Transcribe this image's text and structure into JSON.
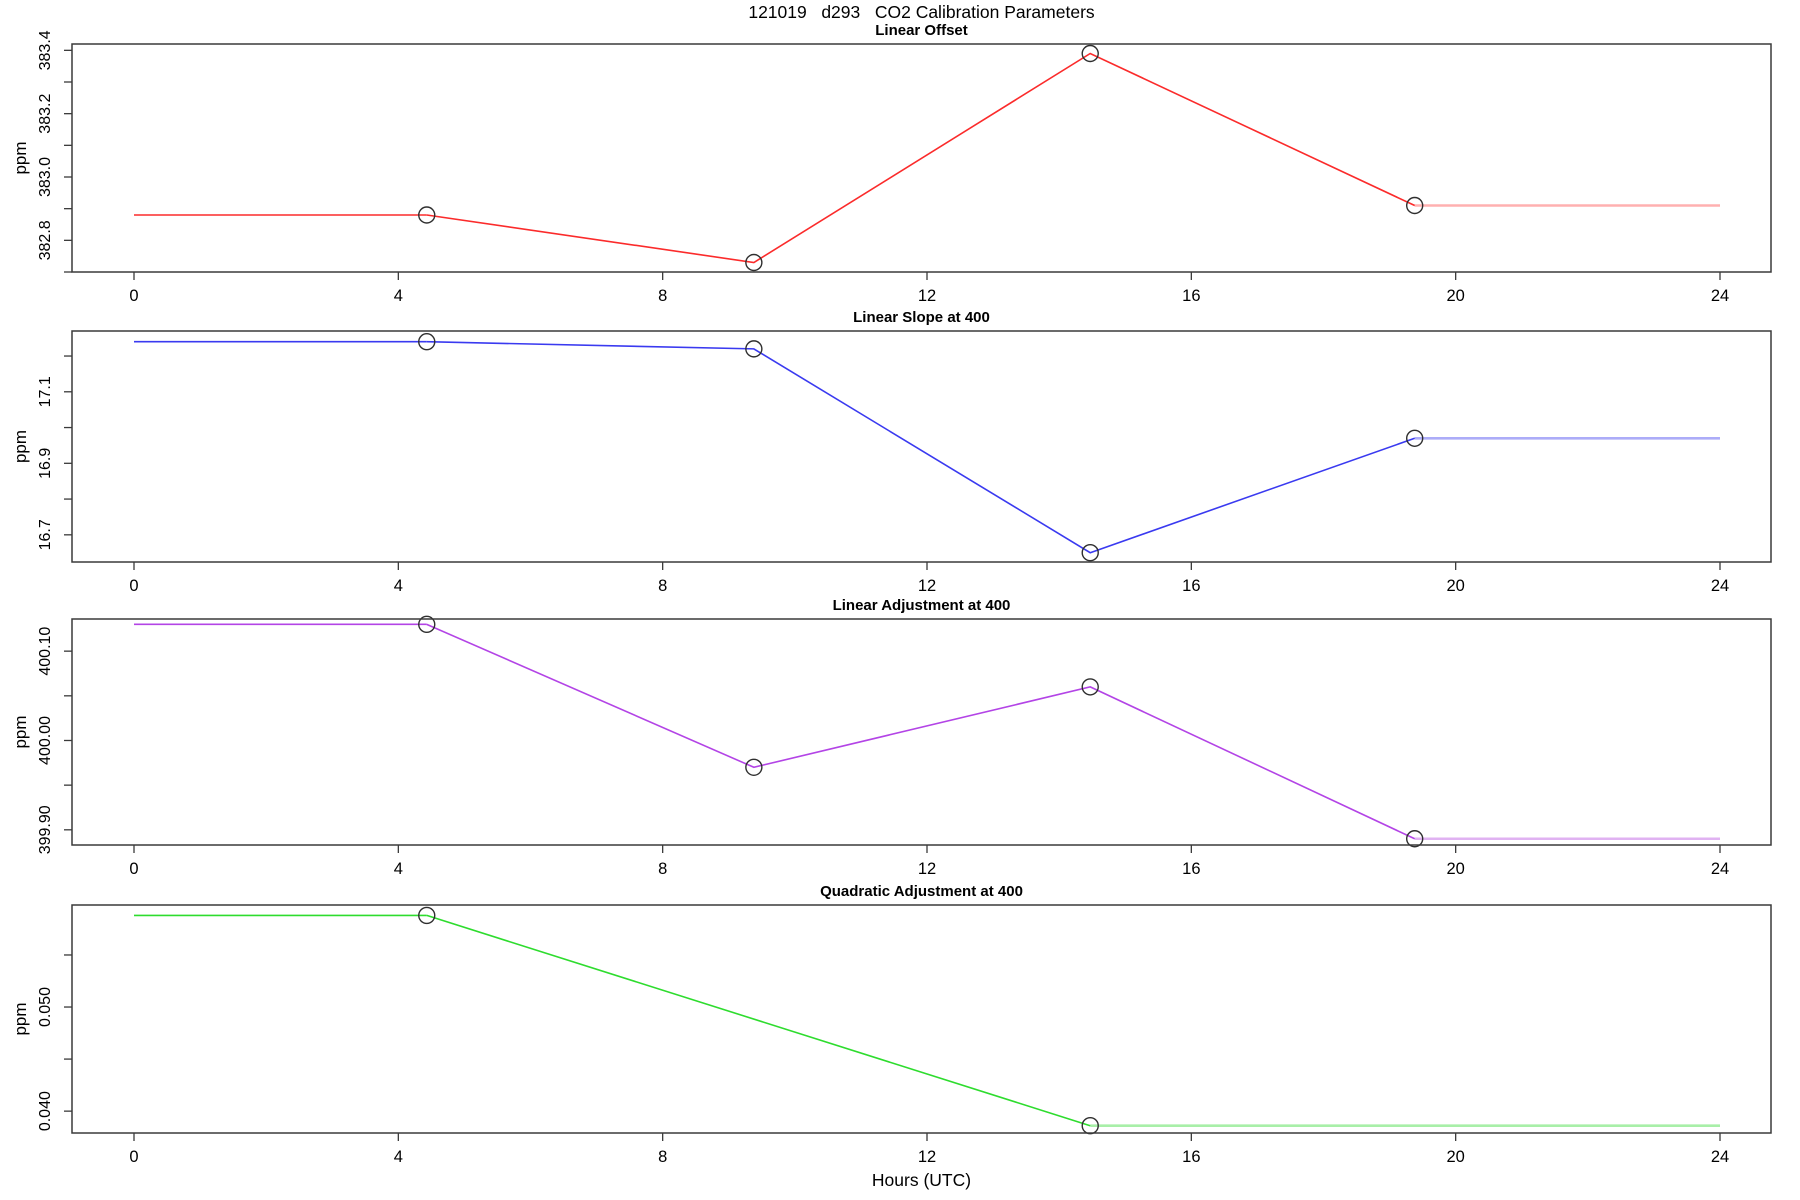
{
  "page": {
    "main_title": "121019   d293   CO2 Calibration Parameters"
  },
  "x_axis": {
    "label": "Hours (UTC)",
    "range": [
      0,
      24
    ],
    "ticks": [
      0,
      4,
      8,
      12,
      16,
      20,
      24
    ]
  },
  "style": {
    "axis_color": "#3a3a3a",
    "text_color": "#000000",
    "marker_color": "#2f2f2f",
    "marker": "open-circle"
  },
  "chart_data": [
    {
      "type": "line",
      "title": "Linear Offset",
      "ylabel": "ppm",
      "color": "#fb2b2b",
      "trail_color": "#ffb0b0",
      "ylim": [
        382.7,
        383.42
      ],
      "yticks": [
        {
          "v": 383.4,
          "label": "383.4"
        },
        {
          "v": 383.3
        },
        {
          "v": 383.2,
          "label": "383.2"
        },
        {
          "v": 383.1
        },
        {
          "v": 383.0,
          "label": "383.0"
        },
        {
          "v": 382.9
        },
        {
          "v": 382.8,
          "label": "382.8"
        },
        {
          "v": 382.7
        }
      ],
      "points": [
        {
          "h": 4.43,
          "v": 382.88
        },
        {
          "h": 9.38,
          "v": 382.73
        },
        {
          "h": 14.47,
          "v": 383.39
        },
        {
          "h": 19.38,
          "v": 382.91
        }
      ]
    },
    {
      "type": "line",
      "title": "Linear Slope at 400",
      "ylabel": "ppm",
      "color": "#3a3af0",
      "trail_color": "#acacf8",
      "ylim": [
        16.624,
        17.27
      ],
      "yticks": [
        {
          "v": 17.2
        },
        {
          "v": 17.1,
          "label": "17.1"
        },
        {
          "v": 17.0
        },
        {
          "v": 16.9,
          "label": "16.9"
        },
        {
          "v": 16.8
        },
        {
          "v": 16.7,
          "label": "16.7"
        }
      ],
      "points": [
        {
          "h": 4.43,
          "v": 17.24
        },
        {
          "h": 9.38,
          "v": 17.22
        },
        {
          "h": 14.47,
          "v": 16.65
        },
        {
          "h": 19.38,
          "v": 16.97
        }
      ]
    },
    {
      "type": "line",
      "title": "Linear Adjustment at 400",
      "ylabel": "ppm",
      "color": "#b344e6",
      "trail_color": "#e0b2f2",
      "ylim": [
        399.883,
        400.136
      ],
      "yticks": [
        {
          "v": 400.1,
          "label": "400.10"
        },
        {
          "v": 400.05
        },
        {
          "v": 400.0,
          "label": "400.00"
        },
        {
          "v": 399.95
        },
        {
          "v": 399.9,
          "label": "399.90"
        }
      ],
      "points": [
        {
          "h": 4.43,
          "v": 400.13
        },
        {
          "h": 9.38,
          "v": 399.97
        },
        {
          "h": 14.47,
          "v": 400.06
        },
        {
          "h": 19.38,
          "v": 399.89
        }
      ]
    },
    {
      "type": "line",
      "title": "Quadratic Adjustment at 400",
      "ylabel": "ppm",
      "color": "#2edc2e",
      "trail_color": "#a8efa8",
      "ylim": [
        0.0379,
        0.0598
      ],
      "yticks": [
        {
          "v": 0.055
        },
        {
          "v": 0.05,
          "label": "0.050"
        },
        {
          "v": 0.045
        },
        {
          "v": 0.04,
          "label": "0.040"
        }
      ],
      "points": [
        {
          "h": 4.43,
          "v": 0.0588
        },
        {
          "h": 14.47,
          "v": 0.0386
        }
      ]
    }
  ]
}
